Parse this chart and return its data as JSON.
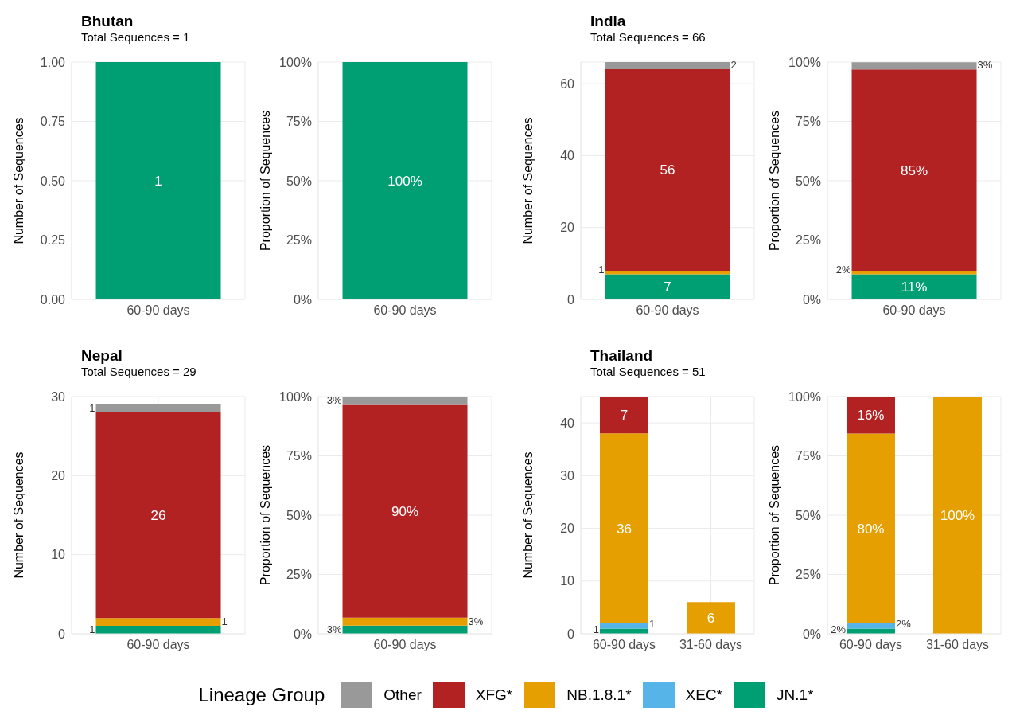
{
  "chart_data": [
    {
      "type": "bar",
      "title": "Bhutan",
      "subtitle": "Total Sequences = 1",
      "categories": [
        "60-90 days"
      ],
      "stacked": true,
      "data_labels": true,
      "ylabel": "Number of Sequences",
      "ylim": [
        0,
        1
      ],
      "yticks": [
        {
          "value": 0,
          "label": "0.00"
        },
        {
          "value": 0.25,
          "label": "0.25"
        },
        {
          "value": 0.5,
          "label": "0.50"
        },
        {
          "value": 0.75,
          "label": "0.75"
        },
        {
          "value": 1,
          "label": "1.00"
        }
      ],
      "grid": true,
      "series": [
        {
          "color": "#009e73",
          "values": [
            1
          ]
        }
      ]
    },
    {
      "type": "bar",
      "categories": [
        "60-90 days"
      ],
      "stacked": true,
      "ylabel": "Proportion of Sequences",
      "ylim": [
        0,
        100
      ],
      "yticks": [
        {
          "value": 0,
          "label": "0%"
        },
        {
          "value": 25,
          "label": "25%"
        },
        {
          "value": 50,
          "label": "50%"
        },
        {
          "value": 75,
          "label": "75%"
        },
        {
          "value": 100,
          "label": "100%"
        }
      ],
      "grid": true,
      "series": [
        {
          "color": "#009e73",
          "values": [
            100
          ],
          "value_labels": [
            "100%"
          ]
        }
      ]
    },
    {
      "type": "bar",
      "title": "India",
      "subtitle": "Total Sequences = 66",
      "categories": [
        "60-90 days"
      ],
      "stacked": true,
      "data_labels": true,
      "ylabel": "Number of Sequences",
      "ylim": [
        0,
        66
      ],
      "yticks": [
        0,
        20,
        40,
        60
      ],
      "grid": true,
      "series": [
        {
          "color": "#009e73",
          "values": [
            7
          ]
        },
        {
          "color": "#e69f00",
          "values": [
            1
          ]
        },
        {
          "color": "#b22222",
          "values": [
            56
          ]
        },
        {
          "color": "#999999",
          "values": [
            2
          ]
        }
      ]
    },
    {
      "type": "bar",
      "categories": [
        "60-90 days"
      ],
      "stacked": true,
      "ylabel": "Proportion of Sequences",
      "ylim": [
        0,
        100
      ],
      "yticks": [
        {
          "value": 0,
          "label": "0%"
        },
        {
          "value": 25,
          "label": "25%"
        },
        {
          "value": 50,
          "label": "50%"
        },
        {
          "value": 75,
          "label": "75%"
        },
        {
          "value": 100,
          "label": "100%"
        }
      ],
      "grid": true,
      "series": [
        {
          "color": "#009e73",
          "values": [
            10.6
          ],
          "value_labels": [
            "11%"
          ]
        },
        {
          "color": "#e69f00",
          "values": [
            1.5
          ],
          "value_labels": [
            "2%"
          ]
        },
        {
          "color": "#b22222",
          "values": [
            84.8
          ],
          "value_labels": [
            "85%"
          ]
        },
        {
          "color": "#999999",
          "values": [
            3.0
          ],
          "value_labels": [
            "3%"
          ]
        }
      ]
    },
    {
      "type": "bar",
      "title": "Nepal",
      "subtitle": "Total Sequences = 29",
      "categories": [
        "60-90 days"
      ],
      "stacked": true,
      "data_labels": true,
      "ylabel": "Number of Sequences",
      "ylim": [
        0,
        30
      ],
      "yticks": [
        0,
        10,
        20,
        30
      ],
      "grid": true,
      "series": [
        {
          "color": "#009e73",
          "values": [
            1
          ]
        },
        {
          "color": "#e69f00",
          "values": [
            1
          ]
        },
        {
          "color": "#b22222",
          "values": [
            26
          ]
        },
        {
          "color": "#999999",
          "values": [
            1
          ]
        }
      ]
    },
    {
      "type": "bar",
      "categories": [
        "60-90 days"
      ],
      "stacked": true,
      "ylabel": "Proportion of Sequences",
      "ylim": [
        0,
        100
      ],
      "yticks": [
        {
          "value": 0,
          "label": "0%"
        },
        {
          "value": 25,
          "label": "25%"
        },
        {
          "value": 50,
          "label": "50%"
        },
        {
          "value": 75,
          "label": "75%"
        },
        {
          "value": 100,
          "label": "100%"
        }
      ],
      "grid": true,
      "series": [
        {
          "color": "#009e73",
          "values": [
            3.4
          ],
          "value_labels": [
            "3%"
          ]
        },
        {
          "color": "#e69f00",
          "values": [
            3.4
          ],
          "value_labels": [
            "3%"
          ]
        },
        {
          "color": "#b22222",
          "values": [
            89.7
          ],
          "value_labels": [
            "90%"
          ]
        },
        {
          "color": "#999999",
          "values": [
            3.4
          ],
          "value_labels": [
            "3%"
          ]
        }
      ]
    },
    {
      "type": "bar",
      "title": "Thailand",
      "subtitle": "Total Sequences = 51",
      "categories": [
        "60-90 days",
        "31-60 days"
      ],
      "stacked": true,
      "data_labels": true,
      "ylabel": "Number of Sequences",
      "ylim": [
        0,
        45
      ],
      "yticks": [
        0,
        10,
        20,
        30,
        40
      ],
      "grid": true,
      "series": [
        {
          "color": "#009e73",
          "values": [
            1,
            null
          ]
        },
        {
          "color": "#56b4e9",
          "values": [
            1,
            null
          ]
        },
        {
          "color": "#e69f00",
          "values": [
            36,
            6
          ]
        },
        {
          "color": "#b22222",
          "values": [
            7,
            null
          ]
        }
      ]
    },
    {
      "type": "bar",
      "categories": [
        "60-90 days",
        "31-60 days"
      ],
      "stacked": true,
      "ylabel": "Proportion of Sequences",
      "ylim": [
        0,
        100
      ],
      "yticks": [
        {
          "value": 0,
          "label": "0%"
        },
        {
          "value": 25,
          "label": "25%"
        },
        {
          "value": 50,
          "label": "50%"
        },
        {
          "value": 75,
          "label": "75%"
        },
        {
          "value": 100,
          "label": "100%"
        }
      ],
      "grid": true,
      "legend": "bottom",
      "legend_title": "Lineage Group",
      "series": [
        {
          "name": "JN.1*",
          "color": "#009e73",
          "values": [
            2.2,
            null
          ],
          "value_labels": [
            "2%",
            null
          ]
        },
        {
          "name": "XEC*",
          "color": "#56b4e9",
          "values": [
            2.2,
            null
          ],
          "value_labels": [
            "2%",
            null
          ]
        },
        {
          "name": "NB.1.8.1*",
          "color": "#e69f00",
          "values": [
            80,
            100
          ],
          "value_labels": [
            "80%",
            "100%"
          ]
        },
        {
          "name": "XFG*",
          "color": "#b22222",
          "values": [
            15.6,
            null
          ],
          "value_labels": [
            "16%",
            null
          ]
        },
        {
          "name": "Other",
          "color": "#999999",
          "values": [
            null,
            null
          ]
        }
      ]
    }
  ]
}
